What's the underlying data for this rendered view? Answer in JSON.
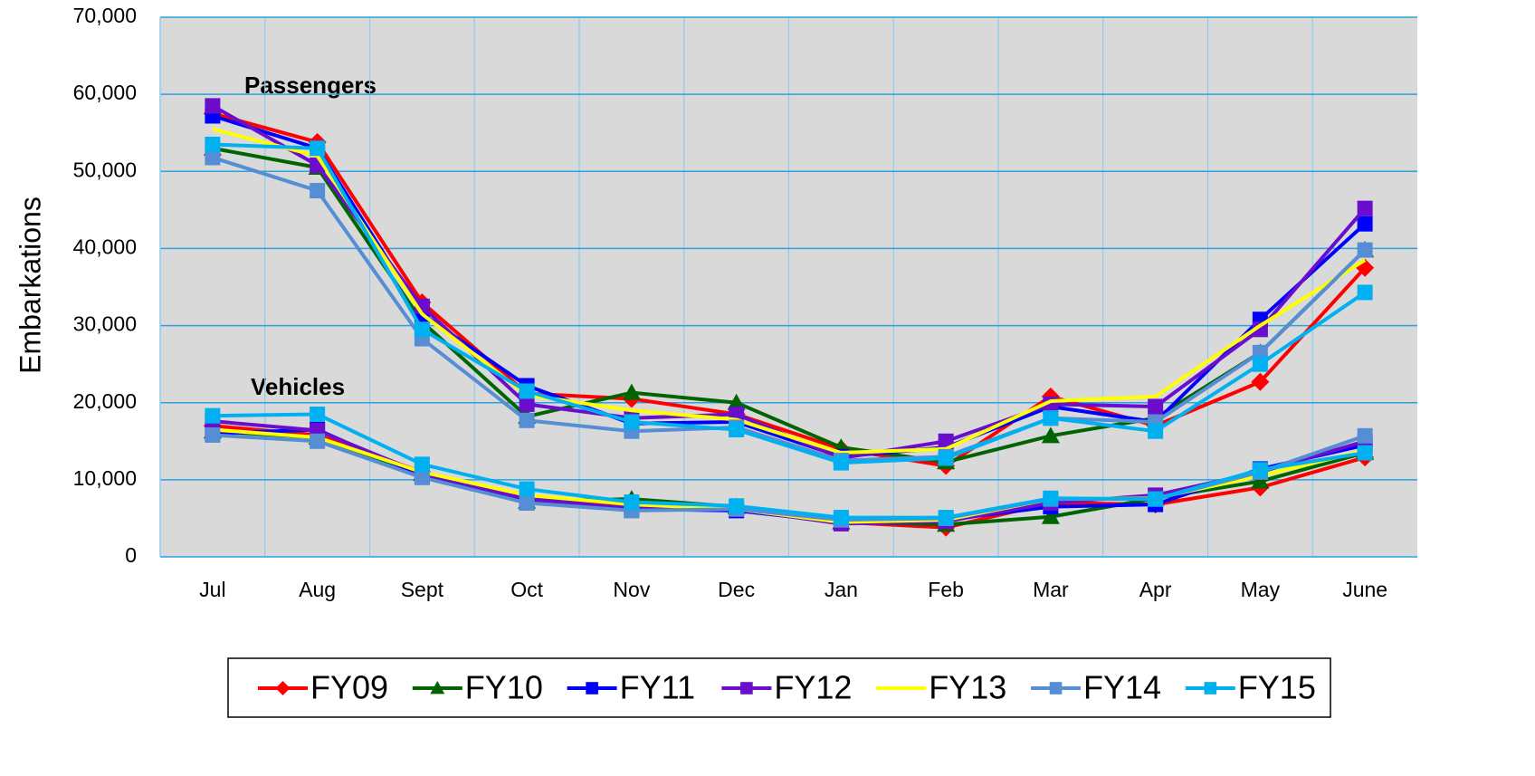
{
  "chart_data": {
    "type": "line",
    "ylabel": "Embarkations",
    "annotations": [
      "Passengers",
      "Vehicles"
    ],
    "categories": [
      "Jul",
      "Aug",
      "Sept",
      "Oct",
      "Nov",
      "Dec",
      "Jan",
      "Feb",
      "Mar",
      "Apr",
      "May",
      "June"
    ],
    "ylim": [
      0,
      70000
    ],
    "yticks": [
      0,
      {
        "value": 10000,
        "label": "10,000"
      },
      {
        "value": 20000,
        "label": "20,000"
      },
      {
        "value": 30000,
        "label": "30,000"
      },
      {
        "value": 40000,
        "label": "40,000"
      },
      {
        "value": 50000,
        "label": "50,000"
      },
      {
        "value": 60000,
        "label": "60,000"
      },
      {
        "value": 70000,
        "label": "70,000"
      }
    ],
    "grid": true,
    "legend": "bottom",
    "series": [
      {
        "name": "FY09",
        "color": "#ff0000",
        "marker": "diamond",
        "passengers": [
          57500,
          53800,
          33000,
          21200,
          20500,
          18500,
          14000,
          11800,
          20800,
          17000,
          22700,
          37500
        ],
        "vehicles": [
          17000,
          15800,
          11000,
          7500,
          6800,
          6300,
          4500,
          3800,
          7000,
          6800,
          9000,
          12900
        ]
      },
      {
        "name": "FY10",
        "color": "#006400",
        "marker": "triangle",
        "passengers": [
          53000,
          50500,
          30500,
          18200,
          21300,
          20000,
          14200,
          12300,
          15700,
          18000,
          26500,
          39800
        ],
        "vehicles": [
          16300,
          15500,
          10800,
          7200,
          7500,
          6500,
          4500,
          4200,
          5200,
          7600,
          9800,
          13500
        ]
      },
      {
        "name": "FY11",
        "color": "#0000ff",
        "marker": "square",
        "passengers": [
          57200,
          53000,
          31500,
          22200,
          17300,
          17500,
          13000,
          14200,
          19500,
          17500,
          30800,
          43200
        ],
        "vehicles": [
          16000,
          16500,
          10500,
          7000,
          6200,
          6000,
          4500,
          4800,
          6500,
          6800,
          11400,
          14500
        ]
      },
      {
        "name": "FY12",
        "color": "#6a0dcc",
        "marker": "square",
        "passengers": [
          58500,
          50800,
          32500,
          19800,
          18000,
          18500,
          12800,
          15000,
          19800,
          19500,
          29500,
          45200
        ],
        "vehicles": [
          17600,
          16400,
          10800,
          7500,
          6300,
          6200,
          4300,
          4600,
          7000,
          8000,
          11000,
          15000
        ]
      },
      {
        "name": "FY13",
        "color": "#ffff00",
        "marker": "none",
        "passengers": [
          55500,
          52000,
          31500,
          21000,
          19000,
          17800,
          13500,
          14000,
          20200,
          20800,
          30000,
          38500
        ],
        "vehicles": [
          16500,
          15500,
          11000,
          8000,
          6800,
          6200,
          4500,
          4800,
          7500,
          7600,
          10500,
          13800
        ]
      },
      {
        "name": "FY14",
        "color": "#558ed5",
        "marker": "square",
        "passengers": [
          51800,
          47500,
          28300,
          17700,
          16300,
          16800,
          12500,
          13000,
          18000,
          17500,
          26500,
          39800
        ],
        "vehicles": [
          15800,
          15000,
          10300,
          7000,
          6000,
          6200,
          4800,
          5000,
          7500,
          7500,
          11000,
          15700
        ]
      },
      {
        "name": "FY15",
        "color": "#00b0f0",
        "marker": "square",
        "passengers": [
          53500,
          53000,
          29500,
          21500,
          17500,
          16500,
          12200,
          12800,
          18000,
          16300,
          25000,
          34300
        ],
        "vehicles": [
          18300,
          18500,
          12000,
          8800,
          7100,
          6600,
          5100,
          5100,
          7600,
          7500,
          11300,
          13500
        ]
      }
    ]
  }
}
